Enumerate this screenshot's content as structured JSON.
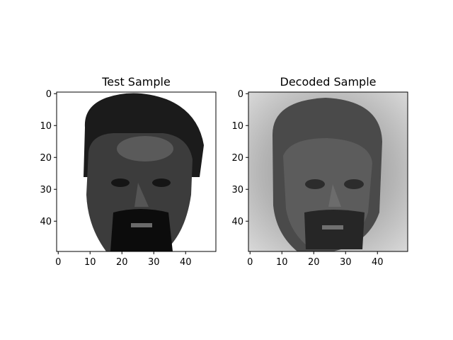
{
  "chart_data": [
    {
      "type": "heatmap",
      "title": "Test Sample",
      "image": "grayscale face image, 50x50 pixels",
      "xlim": [
        -0.5,
        49.5
      ],
      "ylim": [
        49.5,
        -0.5
      ],
      "x_ticks": [
        0,
        10,
        20,
        30,
        40
      ],
      "y_ticks": [
        0,
        10,
        20,
        30,
        40
      ],
      "background": "white",
      "colormap": "gray"
    },
    {
      "type": "heatmap",
      "title": "Decoded Sample",
      "image": "grayscale reconstructed face image, 50x50 pixels",
      "xlim": [
        -0.5,
        49.5
      ],
      "ylim": [
        49.5,
        -0.5
      ],
      "x_ticks": [
        0,
        10,
        20,
        30,
        40
      ],
      "y_ticks": [
        0,
        10,
        20,
        30,
        40
      ],
      "background": "light gray",
      "colormap": "gray"
    }
  ]
}
